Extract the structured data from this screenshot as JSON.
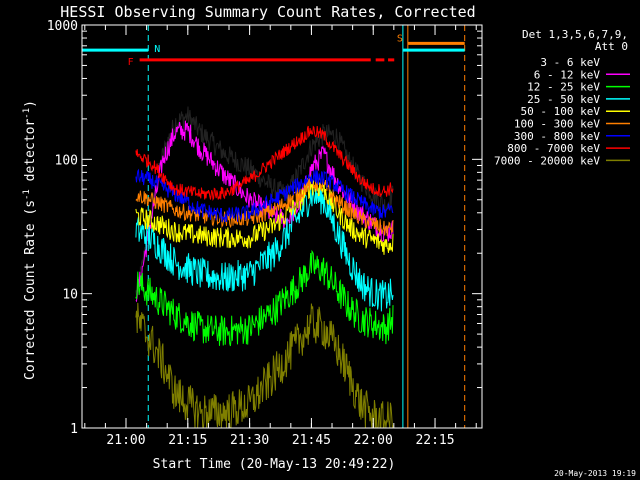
{
  "chart_data": {
    "type": "line",
    "title": "HESSI Observing Summary Count Rates, Corrected",
    "xlabel": "Start Time (20-May-13 20:49:22)",
    "ylabel": "Corrected Count Rate (s",
    "ylabel_sup1": "-1",
    "ylabel_mid": " detector",
    "ylabel_sup2": "-1",
    "ylabel_end": ")",
    "y_scale": "log",
    "ylim": [
      1,
      1000
    ],
    "xlim": [
      20.822,
      22.44
    ],
    "x_tick_values": [
      21.0,
      21.25,
      21.5,
      21.75,
      22.0,
      22.25
    ],
    "x_ticks": [
      "21:00",
      "21:15",
      "21:30",
      "21:45",
      "22:00",
      "22:15"
    ],
    "y_tick_values": [
      1,
      10,
      100,
      1000
    ],
    "y_ticks": [
      "1",
      "10",
      "100",
      "1000"
    ],
    "legend": {
      "header1": "Det 1,3,5,6,7,9,",
      "header2": "Att 0",
      "placement": "right"
    },
    "footer_date": "20-May-2013 19:19",
    "flag_labels": {
      "F": "F",
      "N": "N",
      "S": "S"
    },
    "flag_lines": [
      {
        "x": [
          21.055,
          22.085
        ],
        "y": 550,
        "color": "#ff0000",
        "label": "F",
        "gaps": [
          [
            21.99,
            22.01
          ],
          [
            22.045,
            22.06
          ]
        ]
      },
      {
        "x": [
          20.822,
          21.09
        ],
        "y": 650,
        "color": "#00ffff",
        "label": "N"
      },
      {
        "x": [
          22.12,
          22.37
        ],
        "y": 650,
        "color": "#00ffff",
        "label": ""
      },
      {
        "x": [
          22.14,
          22.37
        ],
        "y": 730,
        "color": "#ff7f00",
        "label": "S"
      }
    ],
    "vertical_markers": [
      {
        "x": 20.822,
        "color": "#00ffff",
        "style": "solid"
      },
      {
        "x": 21.09,
        "color": "#00ffff",
        "style": "dashed"
      },
      {
        "x": 22.12,
        "color": "#00ffff",
        "style": "solid"
      },
      {
        "x": 22.14,
        "color": "#ff7f00",
        "style": "solid"
      },
      {
        "x": 22.37,
        "color": "#ff7f00",
        "style": "dashed"
      }
    ],
    "series": [
      {
        "name": "3 - 6 keV",
        "color": "#000000",
        "noise": 0.08,
        "x": [
          21.04,
          21.06,
          21.1,
          21.15,
          21.2,
          21.25,
          21.3,
          21.4,
          21.5,
          21.6,
          21.65,
          21.7,
          21.75,
          21.8,
          21.85,
          21.9,
          21.95,
          22.0,
          22.05,
          22.08
        ],
        "y": [
          10,
          14,
          40,
          110,
          190,
          210,
          160,
          110,
          85,
          60,
          55,
          80,
          125,
          155,
          150,
          100,
          70,
          55,
          45,
          55
        ]
      },
      {
        "name": "6 - 12 keV",
        "color": "#ff00ff",
        "noise": 0.08,
        "x": [
          21.04,
          21.06,
          21.1,
          21.15,
          21.2,
          21.25,
          21.3,
          21.4,
          21.5,
          21.6,
          21.65,
          21.7,
          21.75,
          21.8,
          21.85,
          21.9,
          21.95,
          22.0,
          22.05,
          22.08
        ],
        "y": [
          10,
          13,
          35,
          100,
          160,
          165,
          120,
          75,
          50,
          38,
          35,
          45,
          85,
          110,
          70,
          50,
          40,
          33,
          28,
          30
        ]
      },
      {
        "name": "12 - 25 keV",
        "color": "#00ff00",
        "noise": 0.12,
        "x": [
          21.04,
          21.1,
          21.2,
          21.3,
          21.4,
          21.5,
          21.6,
          21.7,
          21.75,
          21.8,
          21.85,
          21.9,
          21.95,
          22.0,
          22.05,
          22.08
        ],
        "y": [
          12,
          10,
          7,
          5.5,
          5.2,
          5.5,
          7.5,
          12,
          16,
          15,
          11,
          8,
          6.5,
          6,
          5.5,
          6.5
        ]
      },
      {
        "name": "25 - 50 keV",
        "color": "#00ffff",
        "noise": 0.12,
        "x": [
          21.04,
          21.1,
          21.2,
          21.3,
          21.4,
          21.5,
          21.6,
          21.7,
          21.75,
          21.8,
          21.85,
          21.9,
          21.95,
          22.0,
          22.05,
          22.08
        ],
        "y": [
          30,
          26,
          17,
          14,
          13,
          14,
          20,
          38,
          55,
          50,
          30,
          18,
          12,
          10,
          9.5,
          10
        ]
      },
      {
        "name": "50 - 100 keV",
        "color": "#ffff00",
        "noise": 0.08,
        "x": [
          21.04,
          21.1,
          21.2,
          21.3,
          21.4,
          21.5,
          21.6,
          21.7,
          21.75,
          21.8,
          21.85,
          21.9,
          21.95,
          22.0,
          22.05,
          22.08
        ],
        "y": [
          38,
          35,
          29,
          27,
          26,
          26,
          32,
          48,
          65,
          60,
          42,
          32,
          27,
          25,
          23,
          24
        ]
      },
      {
        "name": "100 - 300 keV",
        "color": "#ff7f00",
        "noise": 0.06,
        "x": [
          21.04,
          21.1,
          21.2,
          21.3,
          21.4,
          21.5,
          21.6,
          21.7,
          21.75,
          21.8,
          21.85,
          21.9,
          21.95,
          22.0,
          22.05,
          22.08
        ],
        "y": [
          55,
          50,
          42,
          38,
          36,
          36,
          42,
          55,
          68,
          64,
          50,
          42,
          36,
          33,
          30,
          31
        ]
      },
      {
        "name": "300 - 800 keV",
        "color": "#0000ff",
        "noise": 0.06,
        "x": [
          21.04,
          21.1,
          21.2,
          21.3,
          21.4,
          21.5,
          21.6,
          21.7,
          21.75,
          21.8,
          21.85,
          21.9,
          21.95,
          22.0,
          22.05,
          22.08
        ],
        "y": [
          75,
          70,
          55,
          42,
          38,
          40,
          50,
          65,
          75,
          72,
          64,
          55,
          48,
          42,
          40,
          44
        ]
      },
      {
        "name": "800 - 7000 keV",
        "color": "#ff0000",
        "noise": 0.05,
        "x": [
          21.04,
          21.1,
          21.15,
          21.2,
          21.3,
          21.4,
          21.5,
          21.6,
          21.7,
          21.75,
          21.8,
          21.85,
          21.9,
          21.95,
          22.0,
          22.05,
          22.08
        ],
        "y": [
          110,
          95,
          75,
          60,
          55,
          56,
          70,
          100,
          140,
          165,
          150,
          115,
          90,
          70,
          60,
          58,
          62
        ]
      },
      {
        "name": "7000 - 20000 keV",
        "color": "#7f7f00",
        "noise": 0.15,
        "x": [
          21.04,
          21.1,
          21.15,
          21.2,
          21.3,
          21.4,
          21.5,
          21.6,
          21.7,
          21.75,
          21.8,
          21.85,
          21.9,
          21.95,
          22.0,
          22.05,
          22.08
        ],
        "y": [
          6.5,
          4.5,
          3,
          1.8,
          1.3,
          1.3,
          1.5,
          2.5,
          4.5,
          6,
          5.5,
          4,
          2.5,
          1.5,
          1.2,
          1.1,
          1.2
        ]
      }
    ]
  }
}
